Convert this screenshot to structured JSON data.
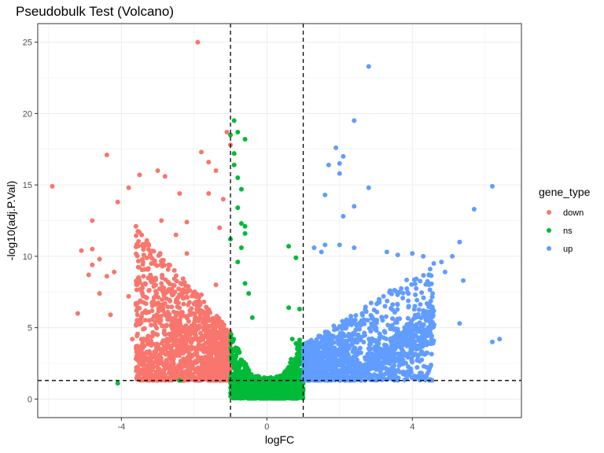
{
  "chart_data": {
    "type": "scatter",
    "title": "Pseudobulk Test (Volcano)",
    "xlabel": "logFC",
    "ylabel": "-log10(adj.P.Val)",
    "xlim": [
      -6.3,
      7.0
    ],
    "ylim": [
      -1.3,
      26.3
    ],
    "x_ticks": [
      -4,
      0,
      4
    ],
    "y_ticks": [
      0,
      5,
      10,
      15,
      20,
      25
    ],
    "grid": true,
    "legend": {
      "title": "gene_type",
      "position": "right",
      "entries": [
        {
          "label": "down",
          "color": "#F8766D"
        },
        {
          "label": "ns",
          "color": "#00BA38"
        },
        {
          "label": "up",
          "color": "#619CFF"
        }
      ]
    },
    "thresholds": {
      "logFC": [
        -1,
        1
      ],
      "neg_log10_adjP": 1.3
    },
    "series": [
      {
        "name": "down",
        "color": "#F8766D",
        "points": [
          [
            -1.9,
            25.0
          ],
          [
            -5.9,
            14.9
          ],
          [
            -4.4,
            17.1
          ],
          [
            -3.8,
            14.8
          ],
          [
            -3.5,
            15.7
          ],
          [
            -4.1,
            13.8
          ],
          [
            -4.8,
            12.5
          ],
          [
            -5.1,
            10.4
          ],
          [
            -4.8,
            10.5
          ],
          [
            -4.6,
            9.8
          ],
          [
            -4.8,
            9.4
          ],
          [
            -4.9,
            8.7
          ],
          [
            -4.6,
            7.4
          ],
          [
            -5.2,
            6.0
          ],
          [
            -4.3,
            5.9
          ],
          [
            -4.4,
            8.6
          ],
          [
            -4.2,
            8.9
          ],
          [
            -3.0,
            16.0
          ],
          [
            -2.8,
            15.6
          ],
          [
            -1.8,
            17.3
          ],
          [
            -1.6,
            16.6
          ],
          [
            -1.4,
            16.0
          ],
          [
            -1.2,
            14.0
          ],
          [
            -1.6,
            14.4
          ],
          [
            -2.4,
            14.4
          ],
          [
            -1.0,
            17.8
          ],
          [
            -1.1,
            18.7
          ],
          [
            -2.9,
            12.5
          ],
          [
            -2.5,
            11.5
          ],
          [
            -3.3,
            11.1
          ],
          [
            -3.6,
            12.1
          ],
          [
            -2.2,
            12.4
          ],
          [
            -1.3,
            12.0
          ],
          [
            -3.2,
            10.0
          ],
          [
            -2.2,
            10.2
          ],
          [
            -3.8,
            7.2
          ],
          [
            -3.6,
            6.7
          ],
          [
            -3.1,
            5.8
          ],
          [
            -3.4,
            4.9
          ],
          [
            -3.7,
            4.2
          ],
          [
            -3.0,
            3.8
          ],
          [
            -3.3,
            3.3
          ],
          [
            -3.5,
            2.6
          ],
          [
            -3.4,
            2.0
          ],
          [
            -2.6,
            2.3
          ],
          [
            -1.4,
            8.0
          ],
          [
            -2.7,
            9.4
          ],
          [
            -1.8,
            7.3
          ],
          [
            -1.1,
            1.5
          ]
        ],
        "cloud": {
          "n": 1500,
          "x_min": -3.6,
          "x_max": -1.0,
          "y_min": 1.3,
          "y_max": 11.0
        }
      },
      {
        "name": "ns",
        "color": "#00BA38",
        "points": [
          [
            -0.9,
            19.5
          ],
          [
            -0.6,
            18.2
          ],
          [
            -0.8,
            18.7
          ],
          [
            -1.0,
            18.5
          ],
          [
            -0.9,
            17.2
          ],
          [
            -0.9,
            16.4
          ],
          [
            -0.8,
            15.5
          ],
          [
            -0.7,
            14.7
          ],
          [
            -0.8,
            13.4
          ],
          [
            -0.7,
            12.3
          ],
          [
            -0.6,
            12.1
          ],
          [
            -0.6,
            11.6
          ],
          [
            -0.7,
            10.6
          ],
          [
            -0.8,
            9.6
          ],
          [
            -0.6,
            8.1
          ],
          [
            -0.5,
            7.4
          ],
          [
            -0.4,
            5.7
          ],
          [
            -1.0,
            11.2
          ],
          [
            0.6,
            10.7
          ],
          [
            0.8,
            9.9
          ],
          [
            0.6,
            6.4
          ],
          [
            0.9,
            6.3
          ],
          [
            0.7,
            4.2
          ],
          [
            0.8,
            3.9
          ],
          [
            -4.1,
            1.1
          ],
          [
            -2.4,
            1.3
          ]
        ],
        "cloud": {
          "n": 1800,
          "x_min": -1.0,
          "x_max": 1.0,
          "y_min": 0.05,
          "y_max": 7.0
        }
      },
      {
        "name": "up",
        "color": "#619CFF",
        "points": [
          [
            2.8,
            23.3
          ],
          [
            2.4,
            19.5
          ],
          [
            1.9,
            17.6
          ],
          [
            2.1,
            17.0
          ],
          [
            2.0,
            16.5
          ],
          [
            1.7,
            16.4
          ],
          [
            2.0,
            15.8
          ],
          [
            2.8,
            14.8
          ],
          [
            1.6,
            14.3
          ],
          [
            2.4,
            13.5
          ],
          [
            2.1,
            12.8
          ],
          [
            6.2,
            14.9
          ],
          [
            5.7,
            13.3
          ],
          [
            5.3,
            11.0
          ],
          [
            5.1,
            10.0
          ],
          [
            4.3,
            10.0
          ],
          [
            4.8,
            9.6
          ],
          [
            4.9,
            8.9
          ],
          [
            5.4,
            8.3
          ],
          [
            5.3,
            5.3
          ],
          [
            6.2,
            4.0
          ],
          [
            6.4,
            4.2
          ],
          [
            3.6,
            10.1
          ],
          [
            4.0,
            10.2
          ],
          [
            3.3,
            10.3
          ],
          [
            1.6,
            10.8
          ],
          [
            2.0,
            10.8
          ],
          [
            2.4,
            10.6
          ],
          [
            1.3,
            10.6
          ],
          [
            1.5,
            10.3
          ]
        ],
        "cloud": {
          "n": 1500,
          "x_min": 1.0,
          "x_max": 4.6,
          "y_min": 1.3,
          "y_max": 9.5
        }
      }
    ]
  }
}
